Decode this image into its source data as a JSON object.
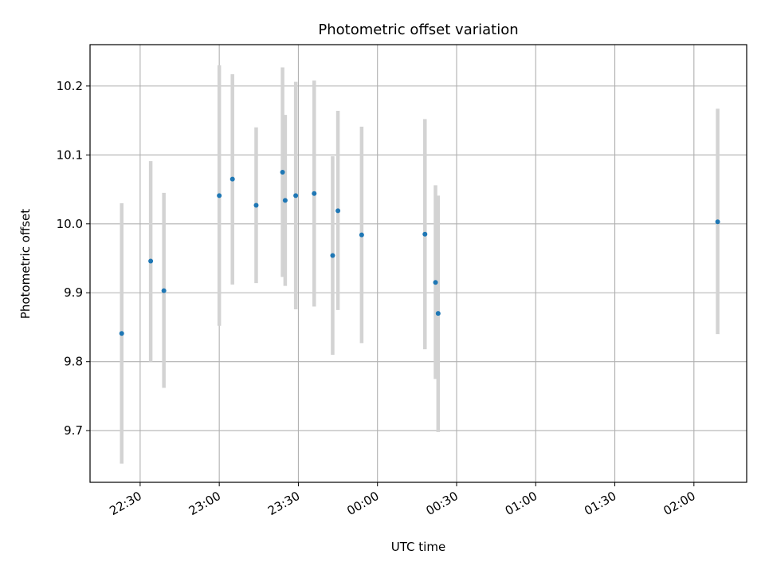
{
  "chart_data": {
    "type": "scatter",
    "title": "Photometric offset variation",
    "xlabel": "UTC time",
    "ylabel": "Photometric offset",
    "x_tick_labels": [
      "22:30",
      "23:00",
      "23:30",
      "00:00",
      "00:30",
      "01:00",
      "01:30",
      "02:00"
    ],
    "x_tick_times": [
      "2000-01-01T22:30",
      "2000-01-01T23:00",
      "2000-01-01T23:30",
      "2000-01-02T00:00",
      "2000-01-02T00:30",
      "2000-01-02T01:00",
      "2000-01-02T01:30",
      "2000-01-02T02:00"
    ],
    "y_tick_labels": [
      "9.7",
      "9.8",
      "9.9",
      "10.0",
      "10.1",
      "10.2"
    ],
    "xlim": [
      "2000-01-01T22:11",
      "2000-01-02T02:20"
    ],
    "ylim": [
      9.625,
      10.26
    ],
    "grid": true,
    "marker_color": "#1f77b4",
    "errorbar_color": "#d3d3d3",
    "series": [
      {
        "points": [
          {
            "x": "2000-01-01T22:23",
            "y": 9.841,
            "low": 9.652,
            "high": 10.03
          },
          {
            "x": "2000-01-01T22:34",
            "y": 9.946,
            "low": 9.8,
            "high": 10.091
          },
          {
            "x": "2000-01-01T22:39",
            "y": 9.903,
            "low": 9.762,
            "high": 10.045
          },
          {
            "x": "2000-01-01T23:00",
            "y": 10.041,
            "low": 9.852,
            "high": 10.23
          },
          {
            "x": "2000-01-01T23:05",
            "y": 10.065,
            "low": 9.912,
            "high": 10.217
          },
          {
            "x": "2000-01-01T23:14",
            "y": 10.027,
            "low": 9.914,
            "high": 10.14
          },
          {
            "x": "2000-01-01T23:24",
            "y": 10.075,
            "low": 9.923,
            "high": 10.227
          },
          {
            "x": "2000-01-01T23:25",
            "y": 10.034,
            "low": 9.91,
            "high": 10.158
          },
          {
            "x": "2000-01-01T23:29",
            "y": 10.041,
            "low": 9.876,
            "high": 10.206
          },
          {
            "x": "2000-01-01T23:36",
            "y": 10.044,
            "low": 9.88,
            "high": 10.208
          },
          {
            "x": "2000-01-01T23:43",
            "y": 9.954,
            "low": 9.81,
            "high": 10.098
          },
          {
            "x": "2000-01-01T23:45",
            "y": 10.019,
            "low": 9.875,
            "high": 10.164
          },
          {
            "x": "2000-01-01T23:54",
            "y": 9.984,
            "low": 9.827,
            "high": 10.141
          },
          {
            "x": "2000-01-02T00:18",
            "y": 9.985,
            "low": 9.818,
            "high": 10.152
          },
          {
            "x": "2000-01-02T00:22",
            "y": 9.915,
            "low": 9.775,
            "high": 10.056
          },
          {
            "x": "2000-01-02T00:23",
            "y": 9.87,
            "low": 9.698,
            "high": 10.041
          },
          {
            "x": "2000-01-02T02:09",
            "y": 10.003,
            "low": 9.84,
            "high": 10.167
          }
        ]
      }
    ]
  }
}
